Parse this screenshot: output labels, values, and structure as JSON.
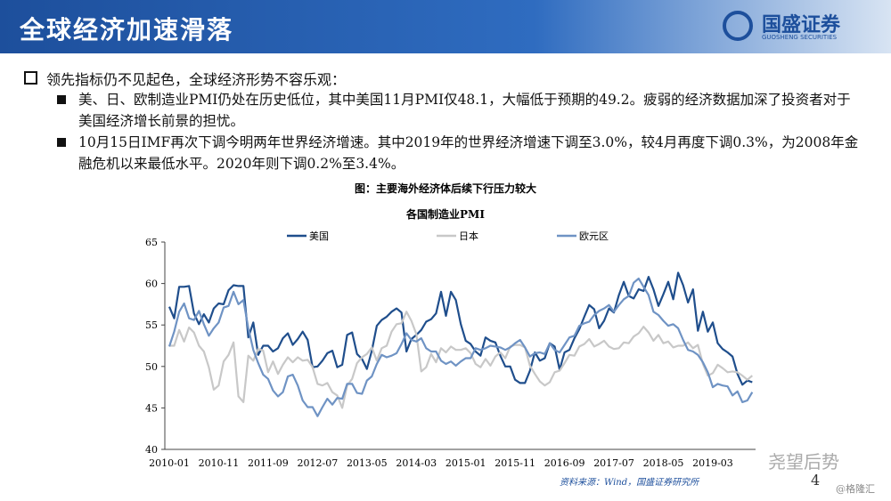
{
  "header": {
    "title": "全球经济加速滑落",
    "logo": "国盛证券",
    "logo_sub": "GUOSHENG SECURITIES"
  },
  "bullets": [
    {
      "text": "领先指标仍不见起色，全球经济形势不容乐观：",
      "items": [
        "美、日、欧制造业PMI仍处在历史低位，其中美国11月PMI仅48.1，大幅低于预期的49.2。疲弱的经济数据加深了投资者对于美国经济增长前景的担忧。",
        "10月15日IMF再次下调今明两年世界经济增速。其中2019年的世界经济增速下调至3.0%，较4月再度下调0.3%，为2008年金融危机以来最低水平。2020年则下调0.2%至3.4%。"
      ]
    }
  ],
  "figure_caption": "图：主要海外经济体后续下行压力较大",
  "source": "资料来源：Wind，国盛证券研究所",
  "page_number": "4",
  "watermark": "尧望后势",
  "watermark2": "@格隆汇",
  "chart_data": {
    "type": "line",
    "title": "各国制造业PMI",
    "categories": [
      "2010-01",
      null,
      null,
      null,
      null,
      null,
      null,
      null,
      null,
      null,
      "2010-11",
      null,
      null,
      null,
      null,
      null,
      null,
      null,
      null,
      null,
      "2011-09",
      null,
      null,
      null,
      null,
      null,
      null,
      null,
      null,
      null,
      "2012-07",
      null,
      null,
      null,
      null,
      null,
      null,
      null,
      null,
      null,
      "2013-05",
      null,
      null,
      null,
      null,
      null,
      null,
      null,
      null,
      null,
      "2014-03",
      null,
      null,
      null,
      null,
      null,
      null,
      null,
      null,
      null,
      "2015-01",
      null,
      null,
      null,
      null,
      null,
      null,
      null,
      null,
      null,
      "2015-11",
      null,
      null,
      null,
      null,
      null,
      null,
      null,
      null,
      null,
      "2016-09",
      null,
      null,
      null,
      null,
      null,
      null,
      null,
      null,
      null,
      "2017-07",
      null,
      null,
      null,
      null,
      null,
      null,
      null,
      null,
      null,
      "2018-05",
      null,
      null,
      null,
      null,
      null,
      null,
      null,
      null,
      null,
      "2019-03",
      null,
      null,
      null,
      null,
      null,
      null,
      null,
      null
    ],
    "series": [
      {
        "name": "美国",
        "color": "#1f4e8c",
        "values": [
          57.2,
          55.8,
          59.6,
          59.6,
          59.7,
          56.4,
          55.1,
          56.3,
          55.3,
          57.0,
          57.6,
          57.5,
          59.2,
          59.8,
          59.7,
          59.7,
          53.5,
          55.3,
          51.4,
          52.5,
          52.5,
          51.8,
          52.2,
          53.4,
          54.0,
          52.6,
          53.3,
          54.2,
          53.2,
          49.9,
          50.0,
          50.7,
          51.6,
          51.9,
          49.9,
          50.2,
          53.8,
          54.1,
          51.5,
          50.9,
          49.7,
          51.9,
          54.9,
          55.6,
          56.0,
          56.6,
          57.0,
          56.5,
          51.8,
          53.3,
          53.8,
          54.4,
          55.4,
          55.7,
          56.4,
          59.0,
          56.1,
          59.0,
          58.0,
          55.1,
          53.1,
          52.7,
          51.8,
          51.3,
          53.5,
          53.1,
          52.9,
          51.3,
          50.0,
          50.0,
          48.4,
          48.0,
          48.0,
          49.5,
          51.7,
          50.7,
          51.0,
          52.8,
          52.4,
          49.6,
          51.7,
          52.0,
          53.4,
          54.5,
          56.0,
          57.4,
          56.9,
          54.6,
          55.5,
          57.0,
          56.5,
          58.6,
          60.2,
          58.5,
          58.2,
          59.3,
          59.1,
          60.8,
          59.3,
          57.3,
          58.7,
          60.2,
          58.1,
          61.3,
          59.8,
          57.7,
          59.3,
          54.3,
          56.6,
          54.2,
          55.3,
          52.8,
          52.1,
          51.7,
          51.2,
          49.1,
          47.8,
          48.3,
          48.1
        ]
      },
      {
        "name": "日本",
        "color": "#c8c8c8",
        "values": [
          52.5,
          52.5,
          54.4,
          53.0,
          54.7,
          54.1,
          52.5,
          51.8,
          49.9,
          47.2,
          47.7,
          50.6,
          51.4,
          52.9,
          46.4,
          45.7,
          51.3,
          50.7,
          52.1,
          51.9,
          49.3,
          50.6,
          49.1,
          50.2,
          51.1,
          50.5,
          51.1,
          50.7,
          50.8,
          49.9,
          47.9,
          47.7,
          48.0,
          46.9,
          46.5,
          45.0,
          47.7,
          48.5,
          50.4,
          51.1,
          51.5,
          52.3,
          50.7,
          52.2,
          52.5,
          54.2,
          55.1,
          55.2,
          56.6,
          55.5,
          53.9,
          49.4,
          49.9,
          51.5,
          50.5,
          52.2,
          51.7,
          52.4,
          52.0,
          52.0,
          52.2,
          51.6,
          50.3,
          49.9,
          50.9,
          50.1,
          51.2,
          51.7,
          51.0,
          52.4,
          52.6,
          52.6,
          52.3,
          50.1,
          49.1,
          48.2,
          47.7,
          48.1,
          49.3,
          49.5,
          50.4,
          51.4,
          51.3,
          52.4,
          52.7,
          53.3,
          52.4,
          52.7,
          53.1,
          52.4,
          52.1,
          52.2,
          52.9,
          52.8,
          53.6,
          54.0,
          54.8,
          54.1,
          53.1,
          53.8,
          52.8,
          53.0,
          52.3,
          52.5,
          52.5,
          52.9,
          52.2,
          52.6,
          50.3,
          48.9,
          49.2,
          50.2,
          49.8,
          49.3,
          49.4,
          49.3,
          48.9,
          48.4,
          48.9
        ]
      },
      {
        "name": "欧元区",
        "color": "#6f93c4",
        "values": [
          52.4,
          54.2,
          56.6,
          57.6,
          55.8,
          55.6,
          56.7,
          55.1,
          53.7,
          54.6,
          55.3,
          57.1,
          57.3,
          59.0,
          57.5,
          58.0,
          54.6,
          52.0,
          50.4,
          49.0,
          48.5,
          47.1,
          46.4,
          46.9,
          48.8,
          49.0,
          47.7,
          45.9,
          45.1,
          45.1,
          44.0,
          45.1,
          46.1,
          45.4,
          46.2,
          46.1,
          47.9,
          47.9,
          46.8,
          46.7,
          48.3,
          48.8,
          50.3,
          51.4,
          51.1,
          51.3,
          51.6,
          52.7,
          54.0,
          53.2,
          53.0,
          53.4,
          52.2,
          51.8,
          51.8,
          50.7,
          50.3,
          50.6,
          50.1,
          50.6,
          51.0,
          51.0,
          52.2,
          52.0,
          52.2,
          52.5,
          52.4,
          52.3,
          52.0,
          52.3,
          52.8,
          53.2,
          52.3,
          51.2,
          51.6,
          51.7,
          51.5,
          52.8,
          52.0,
          51.7,
          52.6,
          53.5,
          53.7,
          54.9,
          55.2,
          55.4,
          56.2,
          56.7,
          57.0,
          57.4,
          56.6,
          57.4,
          58.1,
          58.5,
          60.1,
          60.6,
          59.6,
          58.6,
          56.6,
          56.2,
          55.5,
          54.9,
          55.1,
          54.6,
          53.2,
          52.0,
          51.8,
          51.4,
          50.5,
          49.3,
          47.5,
          47.9,
          47.7,
          47.6,
          46.5,
          47.0,
          45.7,
          45.9,
          46.9
        ]
      }
    ],
    "ylim": [
      40,
      65
    ],
    "yticks": [
      40,
      45,
      50,
      55,
      60,
      65
    ],
    "grid": false,
    "legend": "top"
  }
}
